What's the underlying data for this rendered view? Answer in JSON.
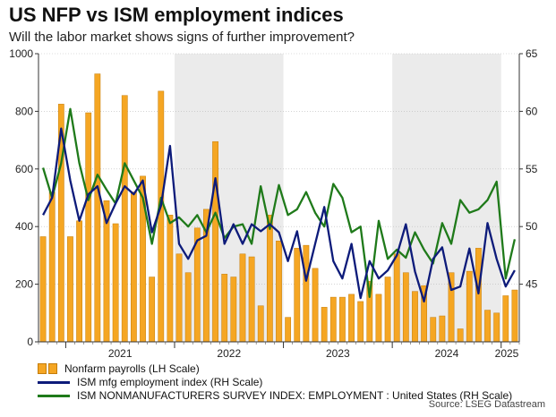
{
  "header": {
    "title": "US NFP vs ISM employment indices",
    "subtitle": "Will the labor market shows signs of further improvement?"
  },
  "legend": {
    "nfp": "Nonfarm payrolls (LH Scale)",
    "mfg": "ISM mfg employment index (RH Scale)",
    "nonmfg": "ISM NONMANUFACTURERS SURVEY INDEX: EMPLOYMENT : United States (RH Scale)"
  },
  "source": "Source: LSEG Datastream",
  "colors": {
    "bar": "#f5a623",
    "bar_edge": "#c47d0a",
    "mfg": "#0d1b7a",
    "nonmfg": "#1f7a1a",
    "shade": "#ebebeb"
  },
  "chart_data": {
    "type": "bar",
    "title": "US NFP vs ISM employment indices",
    "x_start": "2020-10",
    "months": 53,
    "year_labels": [
      "2021",
      "2022",
      "2023",
      "2024",
      "2025"
    ],
    "ylim_left": [
      0,
      1000
    ],
    "left_ticks": [
      0,
      200,
      400,
      600,
      800,
      1000
    ],
    "ylim_right": [
      40,
      65
    ],
    "right_ticks": [
      45,
      50,
      55,
      60,
      65
    ],
    "series": [
      {
        "name": "Nonfarm payrolls (LH Scale)",
        "axis": "left",
        "type": "bar",
        "values": [
          365,
          520,
          825,
          365,
          420,
          795,
          930,
          490,
          410,
          855,
          520,
          575,
          225,
          870,
          440,
          305,
          240,
          395,
          460,
          695,
          235,
          225,
          305,
          295,
          125,
          440,
          350,
          85,
          325,
          335,
          255,
          120,
          155,
          155,
          165,
          140,
          210,
          165,
          225,
          305,
          240,
          175,
          195,
          85,
          90,
          240,
          45,
          245,
          325,
          110,
          100,
          160,
          180
        ]
      },
      {
        "name": "ISM mfg employment index (RH Scale)",
        "axis": "right",
        "type": "line",
        "values": [
          51,
          52.5,
          58.5,
          54,
          50.5,
          52.8,
          53.5,
          50.3,
          52,
          53.5,
          52.8,
          54,
          49.5,
          51.8,
          57,
          48.5,
          47.2,
          48.8,
          49.2,
          54.2,
          48.5,
          50.2,
          48.5,
          50.2,
          49.6,
          50.2,
          49.5,
          47,
          49.6,
          45.3,
          48.5,
          51.7,
          47,
          45.5,
          48.5,
          43.8,
          47,
          45.5,
          46.2,
          47.5,
          50.2,
          46.1,
          43.5,
          47.2,
          48.2,
          44.5,
          44.8,
          48.1,
          44.2,
          50.3,
          47.2,
          44.8,
          46.2
        ]
      },
      {
        "name": "ISM NONMANUFACTURERS SURVEY INDEX: EMPLOYMENT : United States (RH Scale)",
        "axis": "right",
        "type": "line",
        "values": [
          55.1,
          52.5,
          55.5,
          60.2,
          55.5,
          52.3,
          54.5,
          53.2,
          52,
          55.5,
          54,
          52.5,
          48.5,
          52.5,
          50.3,
          50.8,
          50,
          51,
          49.5,
          51.2,
          49,
          50,
          50.2,
          48.5,
          53.5,
          49.8,
          53.6,
          51,
          51.5,
          53,
          51.2,
          50,
          53.7,
          52.5,
          49.5,
          50,
          43.9,
          50.5,
          47.2,
          48,
          47.3,
          49.5,
          48,
          46.8,
          50.3,
          48.5,
          52.3,
          51.2,
          51.5,
          52.3,
          53.9,
          45.5,
          48.9
        ]
      }
    ]
  }
}
